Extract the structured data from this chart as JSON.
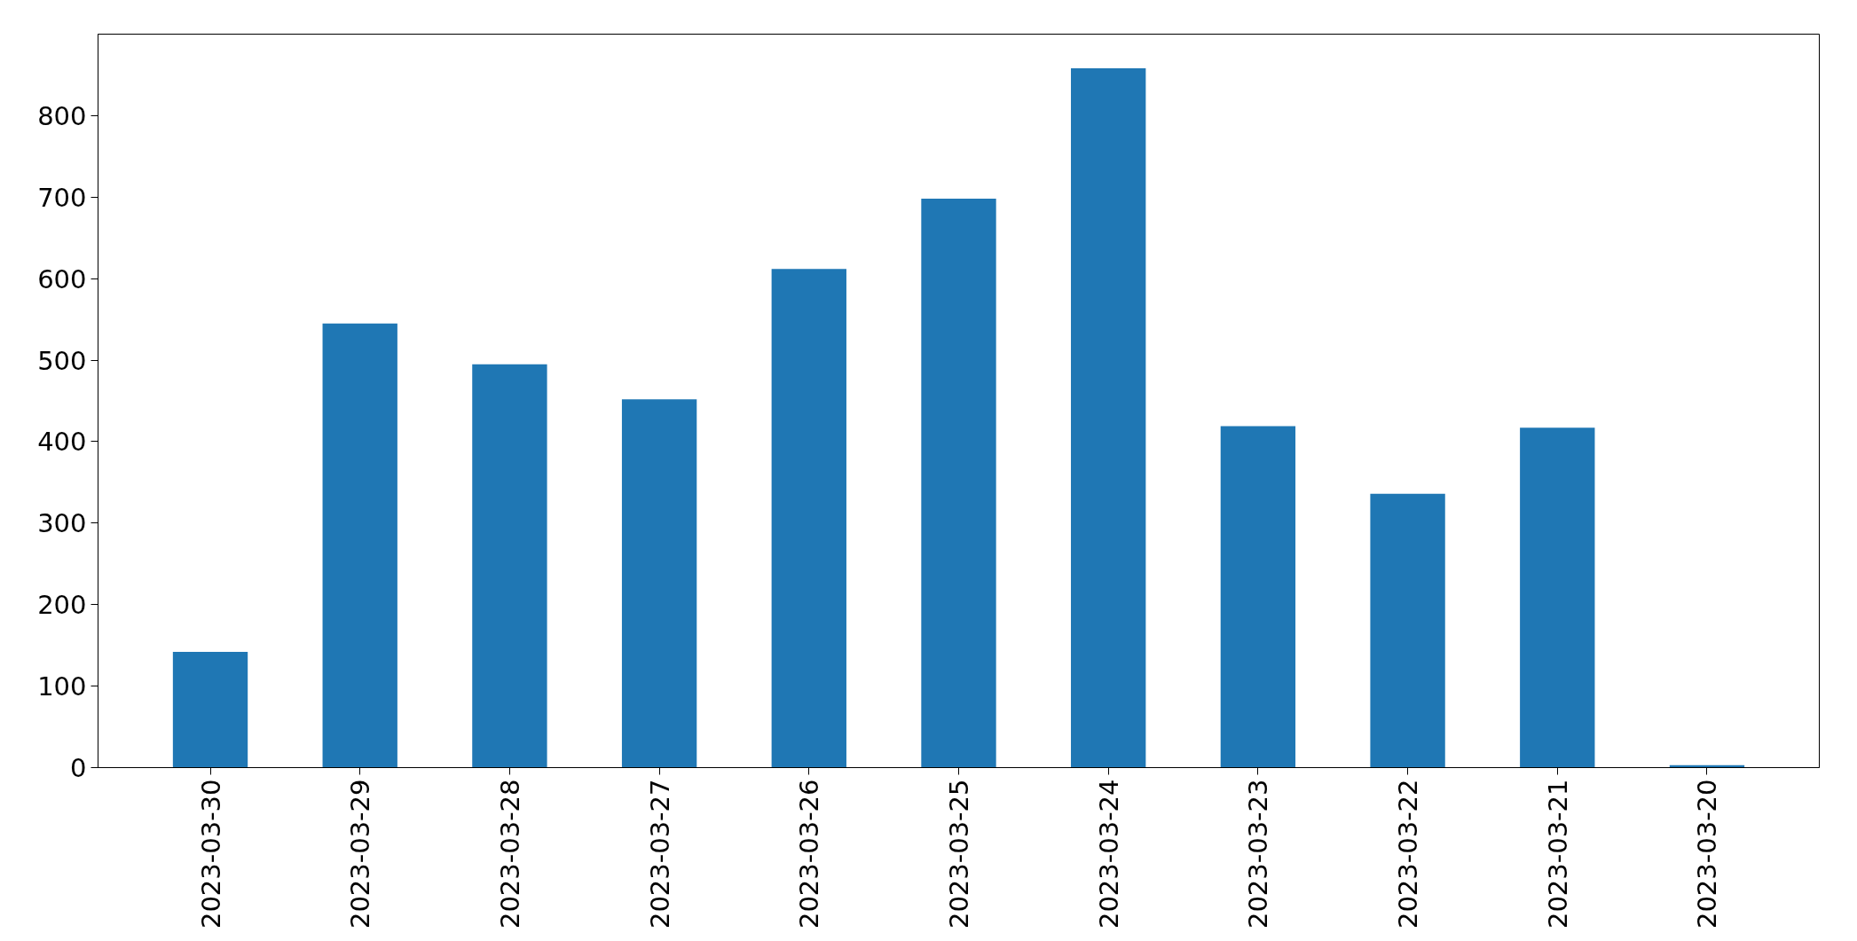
{
  "chart_data": {
    "type": "bar",
    "categories": [
      "2023-03-30",
      "2023-03-29",
      "2023-03-28",
      "2023-03-27",
      "2023-03-26",
      "2023-03-25",
      "2023-03-24",
      "2023-03-23",
      "2023-03-22",
      "2023-03-21",
      "2023-03-20"
    ],
    "values": [
      142,
      545,
      495,
      452,
      612,
      698,
      858,
      419,
      336,
      417,
      3
    ],
    "color": "#1f77b4",
    "ylim": [
      0,
      900
    ],
    "yticks": [
      0,
      100,
      200,
      300,
      400,
      500,
      600,
      700,
      800
    ],
    "grid": false
  }
}
